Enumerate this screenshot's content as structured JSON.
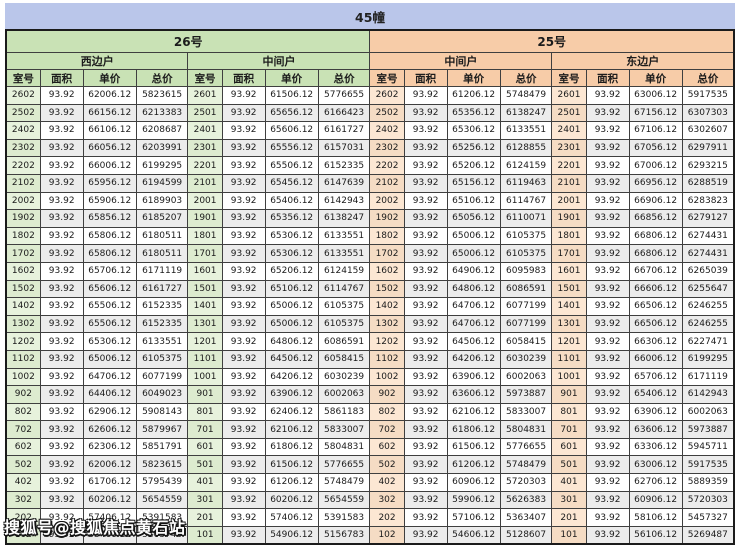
{
  "title": "45幢",
  "watermark": "搜狐号@搜狐焦点黄石站",
  "column_headers": [
    "室号",
    "面积",
    "单价",
    "总价"
  ],
  "sections": [
    {
      "name": "26号",
      "units": [
        "西边户",
        "中间户"
      ]
    },
    {
      "name": "25号",
      "units": [
        "中间户",
        "东边户"
      ]
    }
  ],
  "colors": {
    "title_bar": "#bac6ea",
    "green_header": "#c9e2b5",
    "green_room_cell": "#e7f2dc",
    "orange_header": "#f7cca8",
    "orange_room_cell": "#fce7d3",
    "alt_row": "#ececec"
  },
  "rows": [
    [
      [
        "2602",
        "93.92",
        "62006.12",
        "5823615"
      ],
      [
        "2601",
        "93.92",
        "61506.12",
        "5776655"
      ],
      [
        "2602",
        "93.92",
        "61206.12",
        "5748479"
      ],
      [
        "2601",
        "93.92",
        "63006.12",
        "5917535"
      ]
    ],
    [
      [
        "2502",
        "93.92",
        "66156.12",
        "6213383"
      ],
      [
        "2501",
        "93.92",
        "65656.12",
        "6166423"
      ],
      [
        "2502",
        "93.92",
        "65356.12",
        "6138247"
      ],
      [
        "2501",
        "93.92",
        "67156.12",
        "6307303"
      ]
    ],
    [
      [
        "2402",
        "93.92",
        "66106.12",
        "6208687"
      ],
      [
        "2401",
        "93.92",
        "65606.12",
        "6161727"
      ],
      [
        "2402",
        "93.92",
        "65306.12",
        "6133551"
      ],
      [
        "2401",
        "93.92",
        "67106.12",
        "6302607"
      ]
    ],
    [
      [
        "2302",
        "93.92",
        "66056.12",
        "6203991"
      ],
      [
        "2301",
        "93.92",
        "65556.12",
        "6157031"
      ],
      [
        "2302",
        "93.92",
        "65256.12",
        "6128855"
      ],
      [
        "2301",
        "93.92",
        "67056.12",
        "6297911"
      ]
    ],
    [
      [
        "2202",
        "93.92",
        "66006.12",
        "6199295"
      ],
      [
        "2201",
        "93.92",
        "65506.12",
        "6152335"
      ],
      [
        "2202",
        "93.92",
        "65206.12",
        "6124159"
      ],
      [
        "2201",
        "93.92",
        "67006.12",
        "6293215"
      ]
    ],
    [
      [
        "2102",
        "93.92",
        "65956.12",
        "6194599"
      ],
      [
        "2101",
        "93.92",
        "65456.12",
        "6147639"
      ],
      [
        "2102",
        "93.92",
        "65156.12",
        "6119463"
      ],
      [
        "2101",
        "93.92",
        "66956.12",
        "6288519"
      ]
    ],
    [
      [
        "2002",
        "93.92",
        "65906.12",
        "6189903"
      ],
      [
        "2001",
        "93.92",
        "65406.12",
        "6142943"
      ],
      [
        "2002",
        "93.92",
        "65106.12",
        "6114767"
      ],
      [
        "2001",
        "93.92",
        "66906.12",
        "6283823"
      ]
    ],
    [
      [
        "1902",
        "93.92",
        "65856.12",
        "6185207"
      ],
      [
        "1901",
        "93.92",
        "65356.12",
        "6138247"
      ],
      [
        "1902",
        "93.92",
        "65056.12",
        "6110071"
      ],
      [
        "1901",
        "93.92",
        "66856.12",
        "6279127"
      ]
    ],
    [
      [
        "1802",
        "93.92",
        "65806.12",
        "6180511"
      ],
      [
        "1801",
        "93.92",
        "65306.12",
        "6133551"
      ],
      [
        "1802",
        "93.92",
        "65006.12",
        "6105375"
      ],
      [
        "1801",
        "93.92",
        "66806.12",
        "6274431"
      ]
    ],
    [
      [
        "1702",
        "93.92",
        "65806.12",
        "6180511"
      ],
      [
        "1701",
        "93.92",
        "65306.12",
        "6133551"
      ],
      [
        "1702",
        "93.92",
        "65006.12",
        "6105375"
      ],
      [
        "1701",
        "93.92",
        "66806.12",
        "6274431"
      ]
    ],
    [
      [
        "1602",
        "93.92",
        "65706.12",
        "6171119"
      ],
      [
        "1601",
        "93.92",
        "65206.12",
        "6124159"
      ],
      [
        "1602",
        "93.92",
        "64906.12",
        "6095983"
      ],
      [
        "1601",
        "93.92",
        "66706.12",
        "6265039"
      ]
    ],
    [
      [
        "1502",
        "93.92",
        "65606.12",
        "6161727"
      ],
      [
        "1501",
        "93.92",
        "65106.12",
        "6114767"
      ],
      [
        "1502",
        "93.92",
        "64806.12",
        "6086591"
      ],
      [
        "1501",
        "93.92",
        "66606.12",
        "6255647"
      ]
    ],
    [
      [
        "1402",
        "93.92",
        "65506.12",
        "6152335"
      ],
      [
        "1401",
        "93.92",
        "65006.12",
        "6105375"
      ],
      [
        "1402",
        "93.92",
        "64706.12",
        "6077199"
      ],
      [
        "1401",
        "93.92",
        "66506.12",
        "6246255"
      ]
    ],
    [
      [
        "1302",
        "93.92",
        "65506.12",
        "6152335"
      ],
      [
        "1301",
        "93.92",
        "65006.12",
        "6105375"
      ],
      [
        "1302",
        "93.92",
        "64706.12",
        "6077199"
      ],
      [
        "1301",
        "93.92",
        "66506.12",
        "6246255"
      ]
    ],
    [
      [
        "1202",
        "93.92",
        "65306.12",
        "6133551"
      ],
      [
        "1201",
        "93.92",
        "64806.12",
        "6086591"
      ],
      [
        "1202",
        "93.92",
        "64506.12",
        "6058415"
      ],
      [
        "1201",
        "93.92",
        "66306.12",
        "6227471"
      ]
    ],
    [
      [
        "1102",
        "93.92",
        "65006.12",
        "6105375"
      ],
      [
        "1101",
        "93.92",
        "64506.12",
        "6058415"
      ],
      [
        "1102",
        "93.92",
        "64206.12",
        "6030239"
      ],
      [
        "1101",
        "93.92",
        "66006.12",
        "6199295"
      ]
    ],
    [
      [
        "1002",
        "93.92",
        "64706.12",
        "6077199"
      ],
      [
        "1001",
        "93.92",
        "64206.12",
        "6030239"
      ],
      [
        "1002",
        "93.92",
        "63906.12",
        "6002063"
      ],
      [
        "1001",
        "93.92",
        "65706.12",
        "6171119"
      ]
    ],
    [
      [
        "902",
        "93.92",
        "64406.12",
        "6049023"
      ],
      [
        "901",
        "93.92",
        "63906.12",
        "6002063"
      ],
      [
        "902",
        "93.92",
        "63606.12",
        "5973887"
      ],
      [
        "901",
        "93.92",
        "65406.12",
        "6142943"
      ]
    ],
    [
      [
        "802",
        "93.92",
        "62906.12",
        "5908143"
      ],
      [
        "801",
        "93.92",
        "62406.12",
        "5861183"
      ],
      [
        "802",
        "93.92",
        "62106.12",
        "5833007"
      ],
      [
        "801",
        "93.92",
        "63906.12",
        "6002063"
      ]
    ],
    [
      [
        "702",
        "93.92",
        "62606.12",
        "5879967"
      ],
      [
        "701",
        "93.92",
        "62106.12",
        "5833007"
      ],
      [
        "702",
        "93.92",
        "61806.12",
        "5804831"
      ],
      [
        "701",
        "93.92",
        "63606.12",
        "5973887"
      ]
    ],
    [
      [
        "602",
        "93.92",
        "62306.12",
        "5851791"
      ],
      [
        "601",
        "93.92",
        "61806.12",
        "5804831"
      ],
      [
        "602",
        "93.92",
        "61506.12",
        "5776655"
      ],
      [
        "601",
        "93.92",
        "63306.12",
        "5945711"
      ]
    ],
    [
      [
        "502",
        "93.92",
        "62006.12",
        "5823615"
      ],
      [
        "501",
        "93.92",
        "61506.12",
        "5776655"
      ],
      [
        "502",
        "93.92",
        "61206.12",
        "5748479"
      ],
      [
        "501",
        "93.92",
        "63006.12",
        "5917535"
      ]
    ],
    [
      [
        "402",
        "93.92",
        "61706.12",
        "5795439"
      ],
      [
        "401",
        "93.92",
        "61206.12",
        "5748479"
      ],
      [
        "402",
        "93.92",
        "60906.12",
        "5720303"
      ],
      [
        "401",
        "93.92",
        "62706.12",
        "5889359"
      ]
    ],
    [
      [
        "302",
        "93.92",
        "60206.12",
        "5654559"
      ],
      [
        "301",
        "93.92",
        "60206.12",
        "5654559"
      ],
      [
        "302",
        "93.92",
        "59906.12",
        "5626383"
      ],
      [
        "301",
        "93.92",
        "60906.12",
        "5720303"
      ]
    ],
    [
      [
        "202",
        "93.92",
        "57406.12",
        "5391583"
      ],
      [
        "201",
        "93.92",
        "57406.12",
        "5391583"
      ],
      [
        "202",
        "93.92",
        "57106.12",
        "5363407"
      ],
      [
        "201",
        "93.92",
        "58106.12",
        "5457327"
      ]
    ],
    [
      [
        "102",
        "93.92",
        "55406.12",
        "5203743"
      ],
      [
        "101",
        "93.92",
        "54906.12",
        "5156783"
      ],
      [
        "102",
        "93.92",
        "54606.12",
        "5128607"
      ],
      [
        "101",
        "93.92",
        "56106.12",
        "5269487"
      ]
    ]
  ]
}
